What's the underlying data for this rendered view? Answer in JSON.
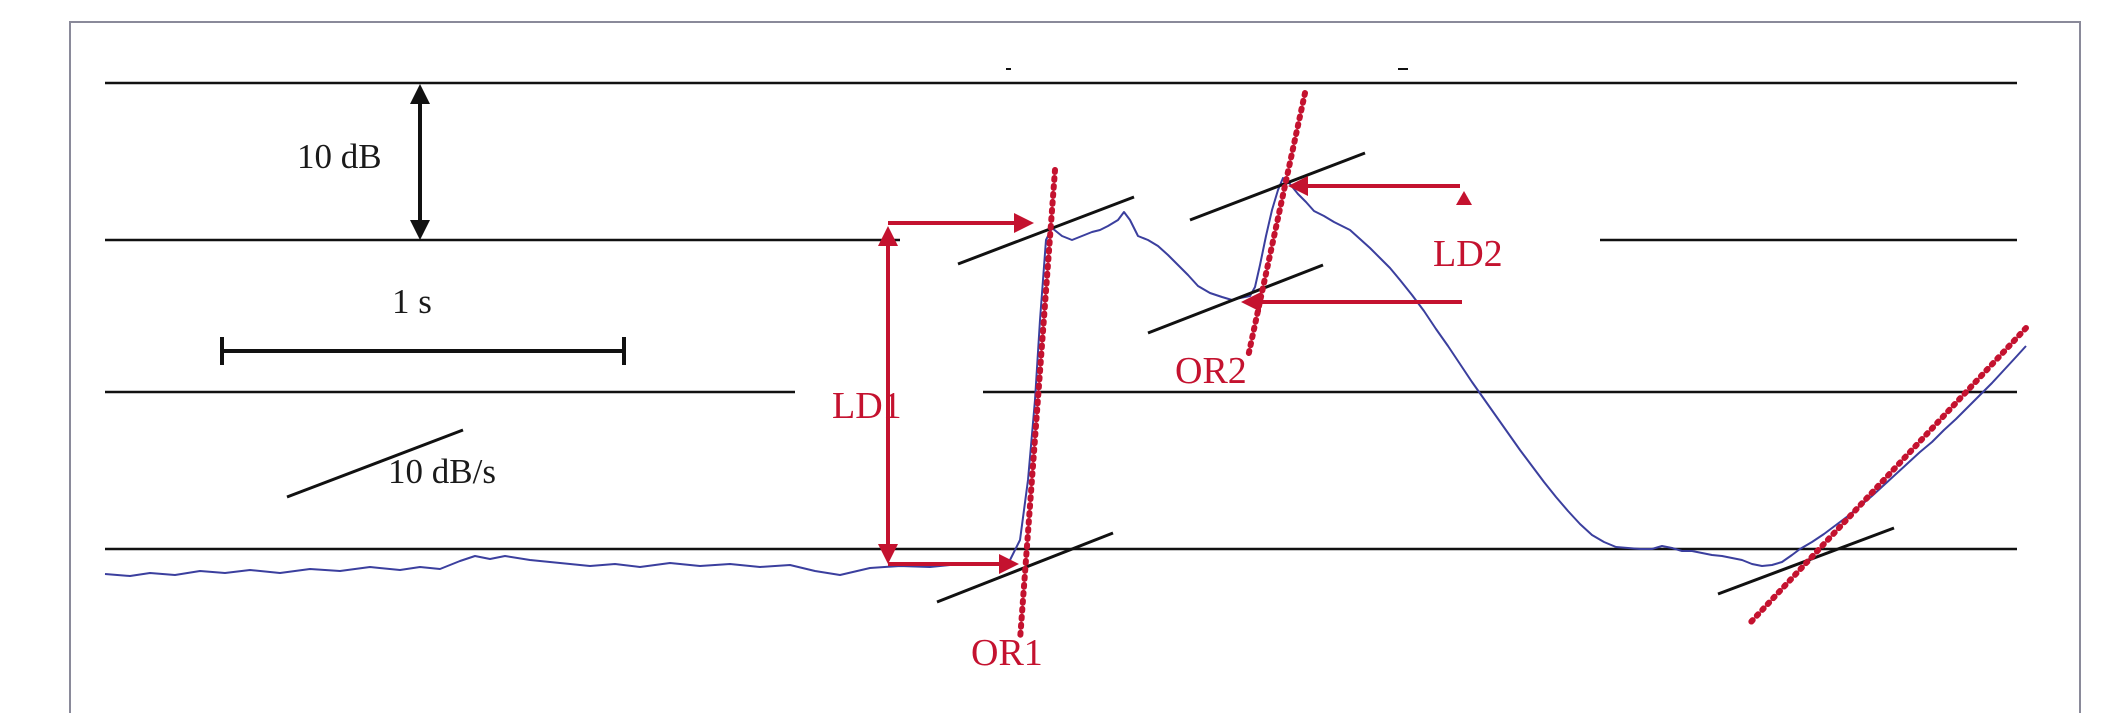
{
  "colors": {
    "signal": "#3b3f9e",
    "annotation": "#c4122f",
    "construction": "#111111",
    "frame": "#8a8a9a"
  },
  "labels": {
    "level_scale": "10 dB",
    "time_scale": "1 s",
    "slope_scale": "10 dB/s",
    "ld1": "LD1",
    "or1": "OR1",
    "ld2": "LD2",
    "or2": "OR2"
  }
}
